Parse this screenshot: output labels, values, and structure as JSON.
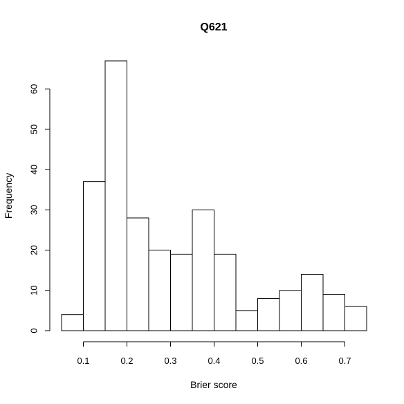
{
  "chart_data": {
    "type": "bar",
    "title": "Q621",
    "xlabel": "Brier score",
    "ylabel": "Frequency",
    "bin_edges": [
      0.05,
      0.1,
      0.15,
      0.2,
      0.25,
      0.3,
      0.35,
      0.4,
      0.45,
      0.5,
      0.55,
      0.6,
      0.65,
      0.7,
      0.75
    ],
    "values": [
      4,
      37,
      67,
      28,
      20,
      19,
      30,
      19,
      5,
      8,
      10,
      14,
      9,
      6
    ],
    "x_ticks": [
      "0.1",
      "0.2",
      "0.3",
      "0.4",
      "0.5",
      "0.6",
      "0.7"
    ],
    "y_ticks": [
      "0",
      "10",
      "20",
      "30",
      "40",
      "50",
      "60"
    ],
    "xlim": [
      0.05,
      0.75
    ],
    "ylim": [
      0,
      67
    ],
    "grid": false,
    "legend": "none"
  }
}
